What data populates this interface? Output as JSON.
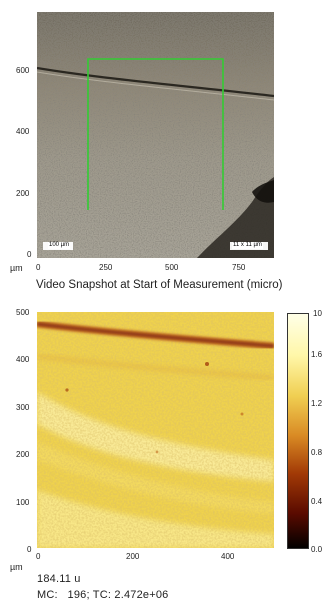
{
  "snapshot": {
    "caption": "Video Snapshot at Start of Measurement (micro)",
    "unit": "µm",
    "y_ticks": [
      "600",
      "400",
      "200",
      "0"
    ],
    "x_ticks": [
      "0",
      "250",
      "500",
      "750"
    ],
    "scale_bar_left": "100 µm",
    "scale_bar_right": "11 x 11 µm",
    "frame_color": "#33cc33"
  },
  "map": {
    "unit": "µm",
    "y_ticks": [
      "500",
      "400",
      "300",
      "200",
      "100",
      "0"
    ],
    "x_ticks": [
      "0",
      "200",
      "400"
    ],
    "colorbar_ticks": [
      "1.6",
      "1.2",
      "0.8",
      "0.4",
      "0.0"
    ],
    "colorbar_exponent": "10",
    "colormap": [
      "#000000",
      "#5a0b00",
      "#a23a06",
      "#d98a24",
      "#f0cf52",
      "#fff7a8",
      "#ffffe8"
    ]
  },
  "readout": {
    "value": "184.11 u",
    "counts": "MC:   196; TC: 2.472e+06"
  }
}
